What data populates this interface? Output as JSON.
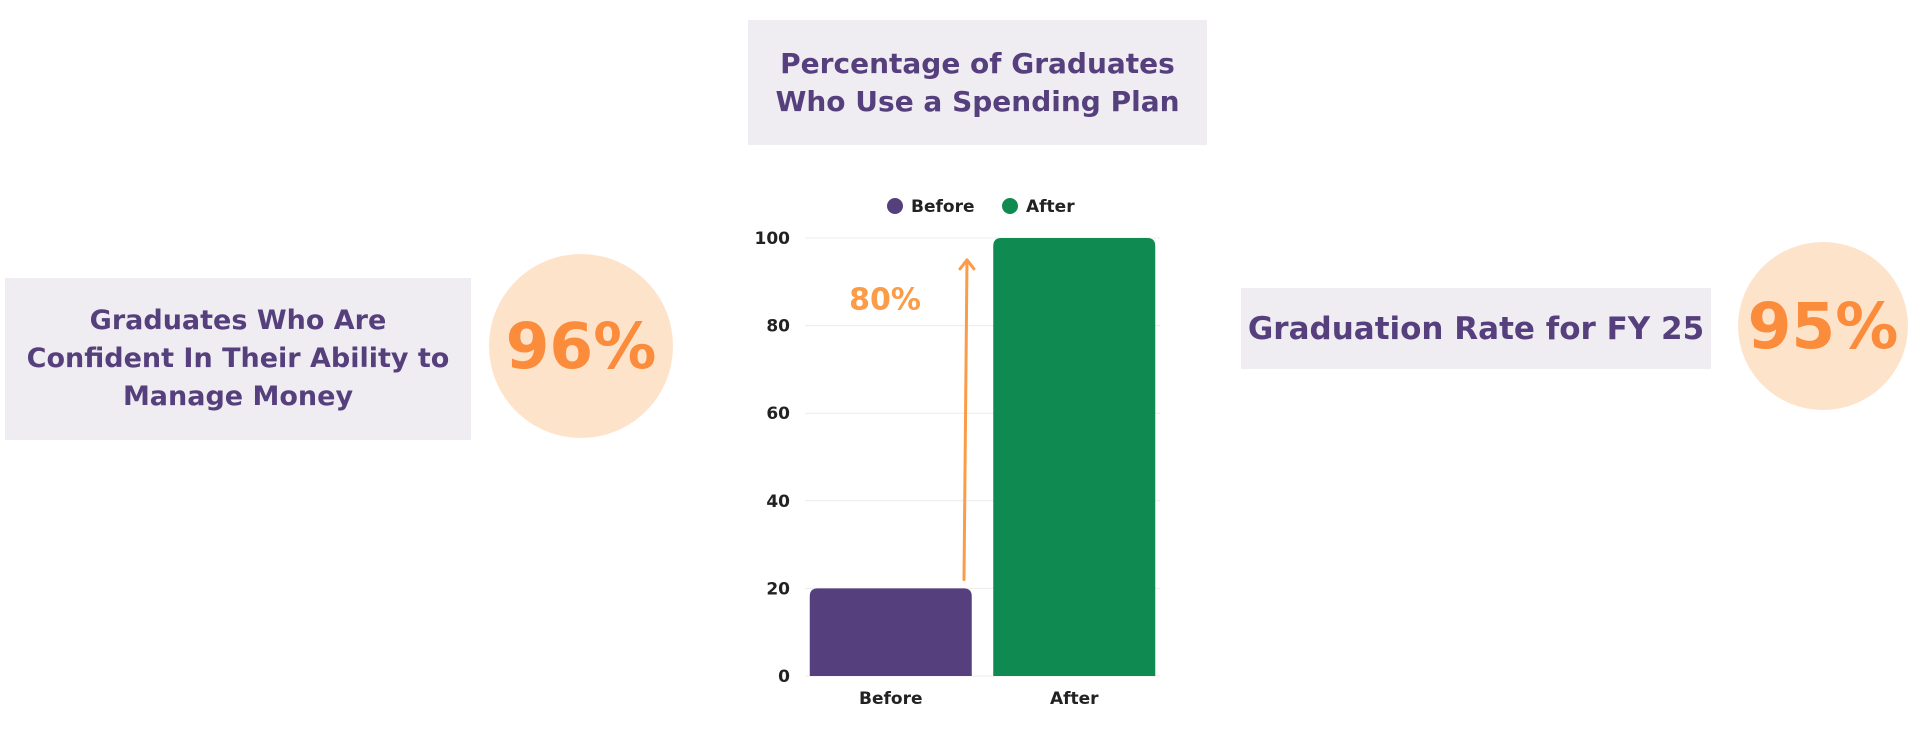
{
  "left_stat": {
    "label": "Graduates Who Are\nConfident In Their Ability to\nManage Money",
    "value": "96%"
  },
  "right_stat": {
    "label": "Graduation Rate for FY 25",
    "value": "95%"
  },
  "chart_data": {
    "type": "bar",
    "title": "Percentage of Graduates\nWho Use a Spending Plan",
    "categories": [
      "Before",
      "After"
    ],
    "values": [
      20,
      100
    ],
    "ylim": [
      0,
      100
    ],
    "yticks": [
      0,
      20,
      40,
      60,
      80,
      100
    ],
    "grid": true,
    "legend": {
      "placement": "top",
      "entries": [
        "Before",
        "After"
      ]
    },
    "annotation": {
      "text": "80%",
      "arrow": "from Before up to After"
    },
    "colors": {
      "Before": "#553f7c",
      "After": "#0f8a50",
      "annotation": "#fb9c48"
    }
  }
}
